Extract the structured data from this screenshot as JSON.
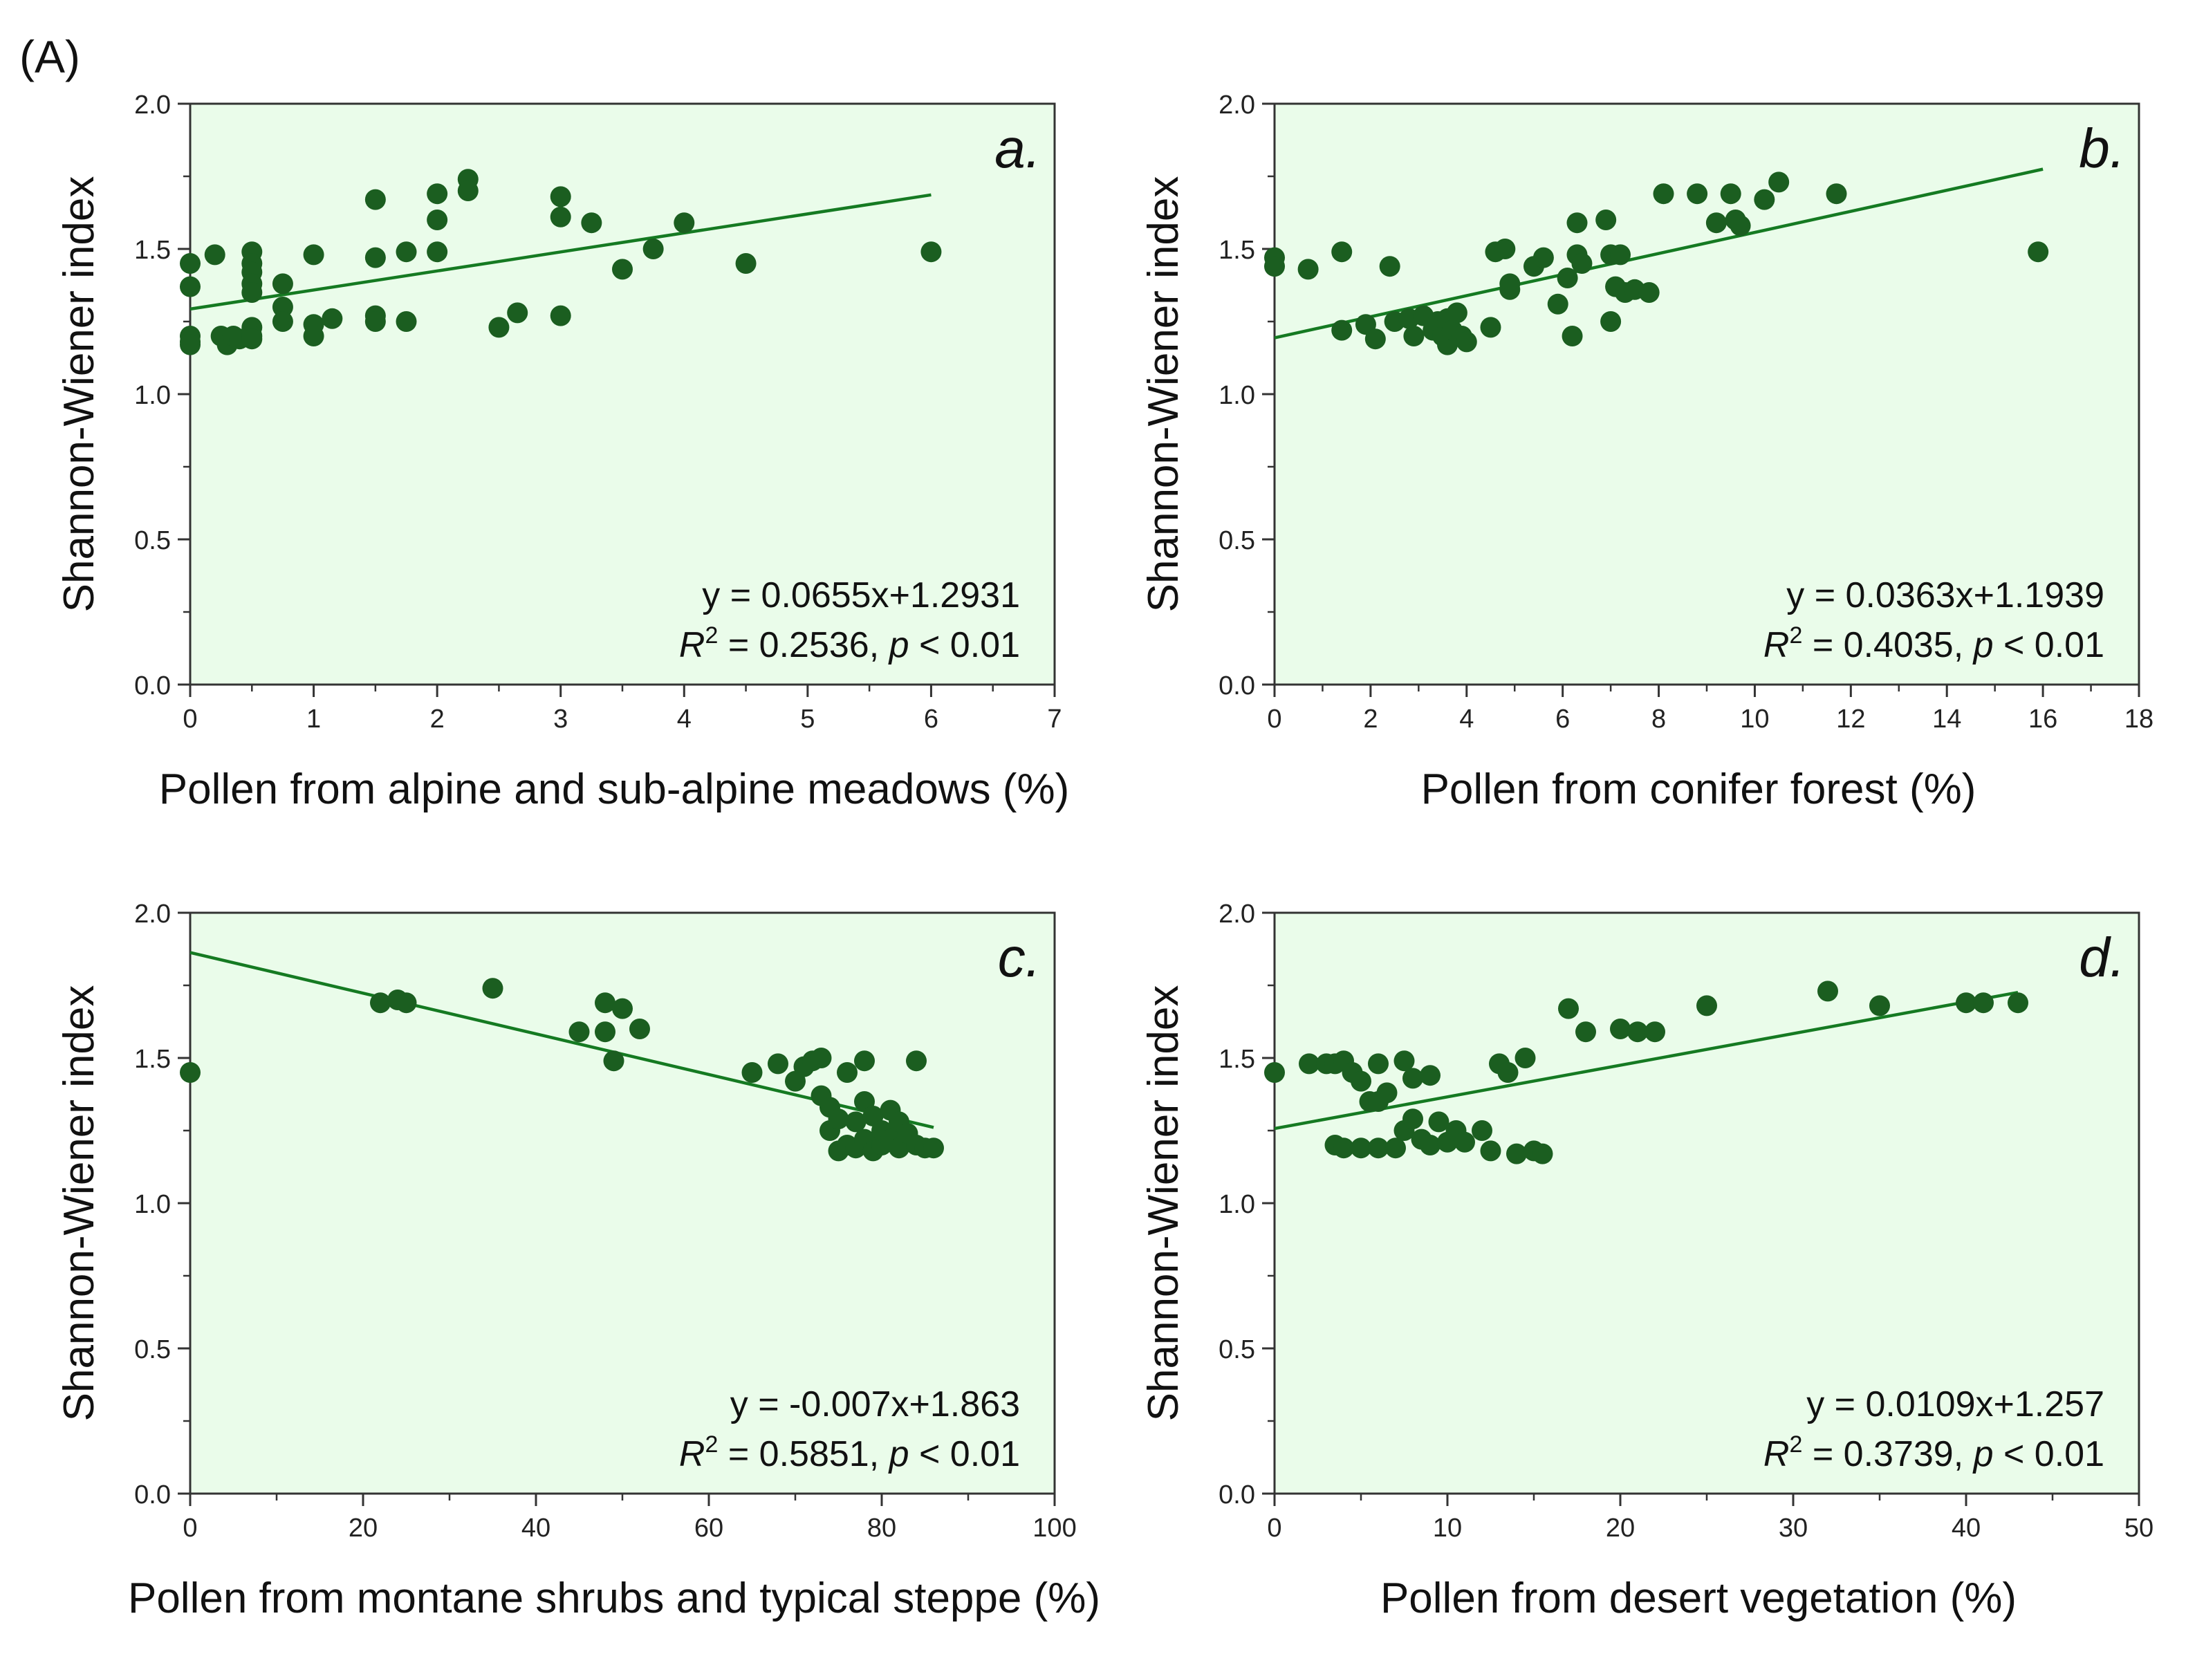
{
  "figure_label": "(A)",
  "colors": {
    "plot_background": "#eafcea",
    "marker": "#1b5e20",
    "fit_line": "#157a22",
    "axis": "#333333"
  },
  "chart_data": [
    {
      "type": "scatter",
      "panel_letter": "a.",
      "xlabel": "Pollen from alpine and sub-alpine meadows (%)",
      "ylabel": "Shannon-Wiener index",
      "xlim": [
        0,
        7
      ],
      "ylim": [
        0.0,
        2.0
      ],
      "x_ticks": [
        0,
        1,
        2,
        3,
        4,
        5,
        6,
        7
      ],
      "x_tick_labels": [
        "0",
        "1",
        "2",
        "3",
        "4",
        "5",
        "6",
        "7"
      ],
      "y_ticks": [
        0,
        0.5,
        1,
        1.5,
        2
      ],
      "y_tick_labels": [
        "0.0",
        "0.5",
        "1.0",
        "1.5",
        "2.0"
      ],
      "equation": "y = 0.0655x+1.2931",
      "stats": {
        "r2_label": "R",
        "r2_sup": "2",
        "r2_value": " = 0.2536, ",
        "p_label": "p",
        "p_value": " < 0.01"
      },
      "fit": {
        "slope": 0.0655,
        "intercept": 1.2931,
        "x_range": [
          0,
          6
        ]
      },
      "x": [
        0,
        0,
        0,
        0,
        0,
        0.2,
        0.25,
        0.3,
        0.35,
        0.4,
        0.5,
        0.5,
        0.5,
        0.5,
        0.5,
        0.5,
        0.5,
        0.5,
        0.75,
        0.75,
        0.75,
        1,
        1,
        1,
        1.15,
        1.5,
        1.5,
        1.5,
        1.5,
        1.75,
        1.75,
        2,
        2,
        2,
        2.25,
        2.25,
        2.5,
        2.65,
        3,
        3,
        3,
        3.25,
        3.5,
        3.75,
        4,
        4.5,
        6
      ],
      "y": [
        1.45,
        1.37,
        1.2,
        1.18,
        1.17,
        1.48,
        1.2,
        1.17,
        1.2,
        1.19,
        1.49,
        1.45,
        1.42,
        1.38,
        1.35,
        1.23,
        1.2,
        1.19,
        1.38,
        1.3,
        1.25,
        1.48,
        1.24,
        1.2,
        1.26,
        1.67,
        1.47,
        1.27,
        1.25,
        1.49,
        1.25,
        1.69,
        1.6,
        1.49,
        1.74,
        1.7,
        1.23,
        1.28,
        1.68,
        1.61,
        1.27,
        1.59,
        1.43,
        1.5,
        1.59,
        1.45,
        1.49
      ]
    },
    {
      "type": "scatter",
      "panel_letter": "b.",
      "xlabel": "Pollen from conifer forest (%)",
      "ylabel": "Shannon-Wiener index",
      "xlim": [
        0,
        18
      ],
      "ylim": [
        0.0,
        2.0
      ],
      "x_ticks": [
        0,
        2,
        4,
        6,
        8,
        10,
        12,
        14,
        16,
        18
      ],
      "x_tick_labels": [
        "0",
        "2",
        "4",
        "6",
        "8",
        "10",
        "12",
        "14",
        "16",
        "18"
      ],
      "y_ticks": [
        0,
        0.5,
        1,
        1.5,
        2
      ],
      "y_tick_labels": [
        "0.0",
        "0.5",
        "1.0",
        "1.5",
        "2.0"
      ],
      "equation": "y = 0.0363x+1.1939",
      "stats": {
        "r2_label": "R",
        "r2_sup": "2",
        "r2_value": " = 0.4035, ",
        "p_label": "p",
        "p_value": " < 0.01"
      },
      "fit": {
        "slope": 0.0363,
        "intercept": 1.1939,
        "x_range": [
          0,
          16
        ]
      },
      "x": [
        0,
        0,
        0.7,
        1.4,
        1.4,
        1.9,
        2.1,
        2.4,
        2.5,
        2.8,
        2.9,
        3.1,
        3.3,
        3.4,
        3.5,
        3.6,
        3.6,
        3.7,
        3.8,
        3.9,
        4.0,
        4.5,
        4.6,
        4.9,
        4.8,
        4.9,
        5.4,
        5.6,
        5.9,
        6.1,
        6.2,
        6.3,
        6.3,
        6.4,
        6.9,
        7.0,
        7.0,
        7.1,
        7.2,
        7.3,
        7.5,
        7.8,
        8.1,
        8.8,
        9.2,
        9.5,
        9.6,
        9.7,
        10.2,
        10.5,
        11.7,
        15.9
      ],
      "y": [
        1.47,
        1.44,
        1.43,
        1.49,
        1.22,
        1.24,
        1.19,
        1.44,
        1.25,
        1.26,
        1.2,
        1.27,
        1.22,
        1.25,
        1.2,
        1.17,
        1.26,
        1.22,
        1.28,
        1.2,
        1.18,
        1.23,
        1.49,
        1.36,
        1.5,
        1.38,
        1.44,
        1.47,
        1.31,
        1.4,
        1.2,
        1.59,
        1.48,
        1.45,
        1.6,
        1.48,
        1.25,
        1.37,
        1.48,
        1.35,
        1.36,
        1.35,
        1.69,
        1.69,
        1.59,
        1.69,
        1.6,
        1.58,
        1.67,
        1.73,
        1.69,
        1.49
      ]
    },
    {
      "type": "scatter",
      "panel_letter": "c.",
      "xlabel": "Pollen from montane shrubs and typical steppe (%)",
      "ylabel": "Shannon-Wiener index",
      "xlim": [
        0,
        100
      ],
      "ylim": [
        0.0,
        2.0
      ],
      "x_ticks": [
        0,
        20,
        40,
        60,
        80,
        100
      ],
      "x_tick_labels": [
        "0",
        "20",
        "40",
        "60",
        "80",
        "100"
      ],
      "y_ticks": [
        0,
        0.5,
        1,
        1.5,
        2
      ],
      "y_tick_labels": [
        "0.0",
        "0.5",
        "1.0",
        "1.5",
        "2.0"
      ],
      "equation": "y = -0.007x+1.863",
      "stats": {
        "r2_label": "R",
        "r2_sup": "2",
        "r2_value": " = 0.5851, ",
        "p_label": "p",
        "p_value": " < 0.01"
      },
      "fit": {
        "slope": -0.007,
        "intercept": 1.863,
        "x_range": [
          0,
          86
        ]
      },
      "x": [
        0,
        22,
        24,
        25,
        35,
        45,
        48,
        48,
        49,
        50,
        52,
        65,
        68,
        70,
        71,
        72,
        73,
        73,
        74,
        74,
        75,
        75,
        76,
        76,
        77,
        77,
        78,
        78,
        78,
        79,
        79,
        80,
        80,
        81,
        81,
        82,
        82,
        83,
        84,
        84,
        85,
        86
      ],
      "y": [
        1.45,
        1.69,
        1.7,
        1.69,
        1.74,
        1.59,
        1.69,
        1.59,
        1.49,
        1.67,
        1.6,
        1.45,
        1.48,
        1.42,
        1.47,
        1.49,
        1.5,
        1.37,
        1.33,
        1.25,
        1.29,
        1.18,
        1.2,
        1.45,
        1.28,
        1.19,
        1.49,
        1.35,
        1.22,
        1.18,
        1.3,
        1.2,
        1.25,
        1.32,
        1.22,
        1.28,
        1.19,
        1.24,
        1.49,
        1.2,
        1.19,
        1.19
      ]
    },
    {
      "type": "scatter",
      "panel_letter": "d.",
      "xlabel": "Pollen from desert vegetation (%)",
      "ylabel": "Shannon-Wiener index",
      "xlim": [
        0,
        50
      ],
      "ylim": [
        0.0,
        2.0
      ],
      "x_ticks": [
        0,
        10,
        20,
        30,
        40,
        50
      ],
      "x_tick_labels": [
        "0",
        "10",
        "20",
        "30",
        "40",
        "50"
      ],
      "y_ticks": [
        0,
        0.5,
        1,
        1.5,
        2
      ],
      "y_tick_labels": [
        "0.0",
        "0.5",
        "1.0",
        "1.5",
        "2.0"
      ],
      "equation": "y = 0.0109x+1.257",
      "stats": {
        "r2_label": "R",
        "r2_sup": "2",
        "r2_value": " = 0.3739, ",
        "p_label": "p",
        "p_value": " < 0.01"
      },
      "fit": {
        "slope": 0.0109,
        "intercept": 1.257,
        "x_range": [
          0,
          43
        ]
      },
      "x": [
        0,
        2,
        3,
        3.5,
        4,
        4.5,
        5,
        3.5,
        4,
        5,
        5.5,
        6,
        6,
        6,
        6.5,
        7,
        7.5,
        7.5,
        8,
        8,
        8.5,
        9,
        9,
        9.5,
        10,
        10.5,
        11,
        12,
        12.5,
        13,
        13.5,
        14,
        14.5,
        15,
        15.5,
        17,
        18,
        20,
        21,
        22,
        25,
        32,
        35,
        40,
        41,
        43
      ],
      "y": [
        1.45,
        1.48,
        1.48,
        1.48,
        1.49,
        1.45,
        1.42,
        1.2,
        1.19,
        1.19,
        1.35,
        1.48,
        1.35,
        1.19,
        1.38,
        1.19,
        1.49,
        1.25,
        1.43,
        1.29,
        1.22,
        1.44,
        1.2,
        1.28,
        1.21,
        1.25,
        1.21,
        1.25,
        1.18,
        1.48,
        1.45,
        1.17,
        1.5,
        1.18,
        1.17,
        1.67,
        1.59,
        1.6,
        1.59,
        1.59,
        1.68,
        1.73,
        1.68,
        1.69,
        1.69,
        1.69
      ]
    }
  ]
}
